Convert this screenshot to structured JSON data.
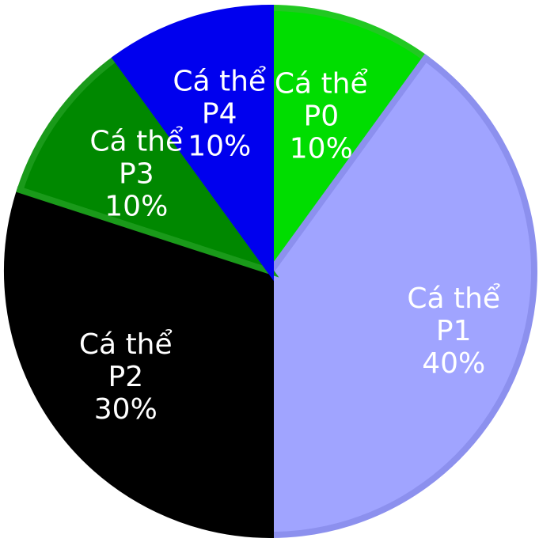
{
  "chart_data": {
    "type": "pie",
    "start": "top",
    "direction": "clockwise",
    "slices": [
      {
        "name_line1": "Cá thể",
        "name_line2": "P0",
        "value": 10,
        "percent_label": "10%",
        "color": "#00dd00",
        "edge_color": "#22c822"
      },
      {
        "name_line1": "Cá thể",
        "name_line2": "P1",
        "value": 40,
        "percent_label": "40%",
        "color": "#a0a4ff",
        "edge_color": "#8c90ee"
      },
      {
        "name_line1": "Cá thể",
        "name_line2": "P2",
        "value": 30,
        "percent_label": "30%",
        "color": "#000000",
        "edge_color": "#000000"
      },
      {
        "name_line1": "Cá thể",
        "name_line2": "P3",
        "value": 10,
        "percent_label": "10%",
        "color": "#008800",
        "edge_color": "#1a9a1a"
      },
      {
        "name_line1": "Cá thể",
        "name_line2": "P4",
        "value": 10,
        "percent_label": "10%",
        "color": "#0000ee",
        "edge_color": "#0000ee"
      }
    ]
  }
}
